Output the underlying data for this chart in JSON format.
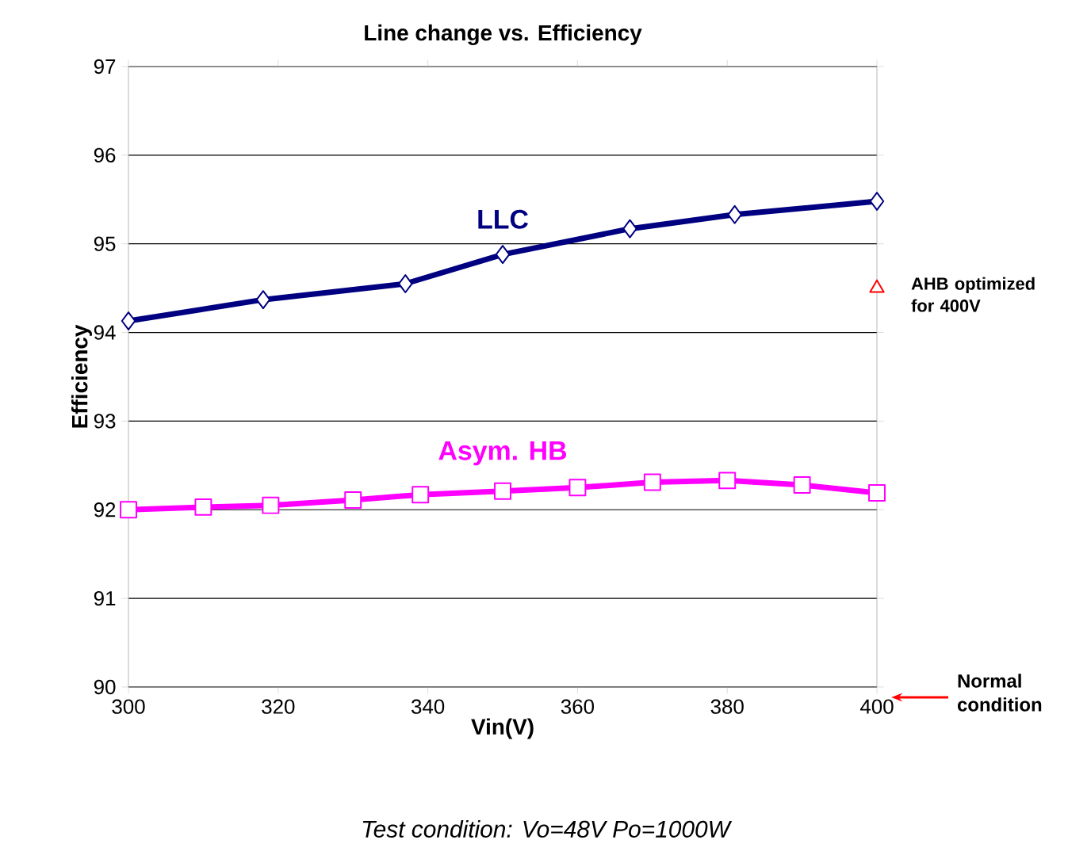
{
  "chart_data": {
    "type": "line",
    "title": "Line change vs. Efficiency",
    "xlabel": "Vin(V)",
    "ylabel": "Efficiency",
    "series": [
      {
        "name": "LLC",
        "color": "#000080",
        "marker": "diamond",
        "x": [
          300,
          318,
          337,
          350,
          367,
          381,
          400
        ],
        "values": [
          94.13,
          94.37,
          94.55,
          94.88,
          95.17,
          95.33,
          95.48
        ]
      },
      {
        "name": "Asym. HB",
        "color": "#ff00ff",
        "marker": "square",
        "x": [
          300,
          310,
          319,
          330,
          339,
          350,
          360,
          370,
          380,
          390,
          400
        ],
        "values": [
          92.0,
          92.03,
          92.05,
          92.11,
          92.17,
          92.21,
          92.25,
          92.31,
          92.33,
          92.28,
          92.19
        ]
      },
      {
        "type": "scatter",
        "color": "#ff0000",
        "marker": "triangle",
        "x": [
          400
        ],
        "values": [
          94.5
        ]
      }
    ],
    "xlim": [
      300,
      400
    ],
    "xticks": [
      300,
      320,
      340,
      360,
      380,
      400
    ],
    "ylim": [
      90,
      97
    ],
    "yticks": [
      90,
      91,
      92,
      93,
      94,
      95,
      96,
      97
    ],
    "grid": "y",
    "annotations": [
      {
        "text": "AHB optimized for 400V",
        "x": 400,
        "y": 94.5
      },
      "Normal condition",
      "Test condition: Vo=48V Po=1000W"
    ]
  }
}
